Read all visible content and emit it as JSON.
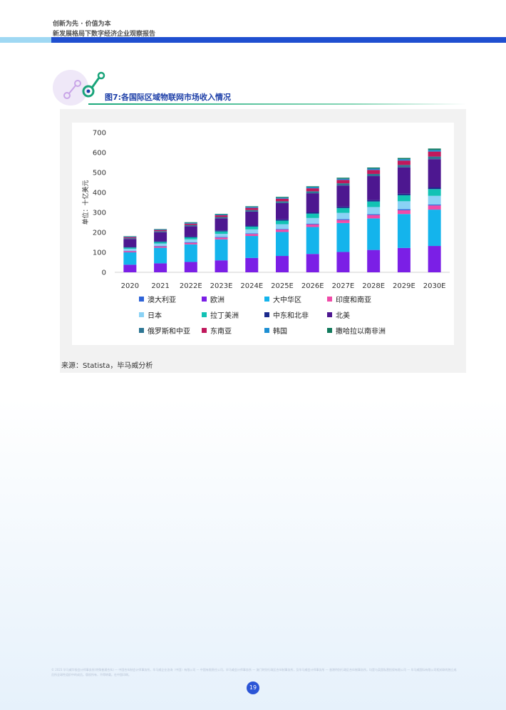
{
  "header": {
    "line1": "创新为先 · 价值为本",
    "line2": "新发展格局下数字经济企业观察报告"
  },
  "figure": {
    "title": "图7:各国际区域物联网市场收入情况",
    "source": "来源：Statista，毕马威分析"
  },
  "chart_data": {
    "type": "bar",
    "stacked": true,
    "ylabel": "单位：十亿美元",
    "xlabel": "",
    "ylim": [
      0,
      700
    ],
    "yticks": [
      0,
      100,
      200,
      300,
      400,
      500,
      600,
      700
    ],
    "grid": false,
    "legend_position": "bottom",
    "categories": [
      "2020",
      "2021",
      "2022E",
      "2023E",
      "2024E",
      "2025E",
      "2026E",
      "2027E",
      "2028E",
      "2029E",
      "2030E"
    ],
    "series": [
      {
        "name": "欧洲",
        "color": "#7b1fe6",
        "values": [
          38,
          45,
          52,
          60,
          72,
          82,
          92,
          102,
          112,
          122,
          132
        ]
      },
      {
        "name": "大中华区",
        "color": "#14b4ec",
        "values": [
          62,
          78,
          88,
          105,
          110,
          120,
          135,
          145,
          158,
          170,
          182
        ]
      },
      {
        "name": "印度和南亚",
        "color": "#f04aa8",
        "values": [
          6,
          7,
          8,
          9,
          10,
          12,
          13,
          15,
          17,
          19,
          21
        ]
      },
      {
        "name": "澳大利亚",
        "color": "#2f63d8",
        "values": [
          2,
          2,
          3,
          3,
          3,
          3,
          4,
          4,
          4,
          5,
          5
        ]
      },
      {
        "name": "日本",
        "color": "#8ad2f5",
        "values": [
          10,
          12,
          14,
          16,
          20,
          24,
          28,
          32,
          36,
          40,
          43
        ]
      },
      {
        "name": "拉丁美洲",
        "color": "#12c2b4",
        "values": [
          6,
          8,
          10,
          12,
          14,
          18,
          22,
          24,
          28,
          30,
          34
        ]
      },
      {
        "name": "中东和北非",
        "color": "#1b2a8c",
        "values": [
          3,
          4,
          4,
          5,
          5,
          6,
          6,
          7,
          7,
          8,
          8
        ]
      },
      {
        "name": "北美",
        "color": "#4d1790",
        "values": [
          40,
          45,
          52,
          60,
          70,
          82,
          96,
          106,
          120,
          132,
          142
        ]
      },
      {
        "name": "俄罗斯和中亚",
        "color": "#2d7694",
        "values": [
          4,
          5,
          6,
          7,
          8,
          9,
          10,
          11,
          11,
          12,
          13
        ]
      },
      {
        "name": "东南亚",
        "color": "#c0185c",
        "values": [
          5,
          6,
          7,
          9,
          11,
          13,
          15,
          17,
          20,
          22,
          25
        ]
      },
      {
        "name": "韩国",
        "color": "#1d8fd3",
        "values": [
          3,
          3,
          4,
          4,
          5,
          5,
          6,
          6,
          7,
          7,
          8
        ]
      },
      {
        "name": "撒哈拉以南非洲",
        "color": "#117a5c",
        "values": [
          2,
          2,
          3,
          3,
          3,
          4,
          4,
          5,
          5,
          6,
          7
        ]
      }
    ],
    "legend_order": [
      "澳大利亚",
      "欧洲",
      "大中华区",
      "印度和南亚",
      "日本",
      "拉丁美洲",
      "中东和北非",
      "北美",
      "俄罗斯和中亚",
      "东南亚",
      "韩国",
      "撒哈拉以南非洲"
    ]
  },
  "footer": {
    "text": "© 2023 毕马威华振会计师事务所(特殊普通合伙) — 中国合伙制会计师事务所，毕马威企业咨询（中国）有限公司 — 中国有限责任公司，毕马威会计师事务所 — 澳门特别行政区合伙制事务所，及毕马威会计师事务所 — 香港特别行政区合伙制事务所，均是与英国私营担保有限公司 — 毕马威国际有限公司相关联的独立成员所全球性组织中的成员。版权所有，不得转载。在中国印刷。",
    "page": "19"
  }
}
